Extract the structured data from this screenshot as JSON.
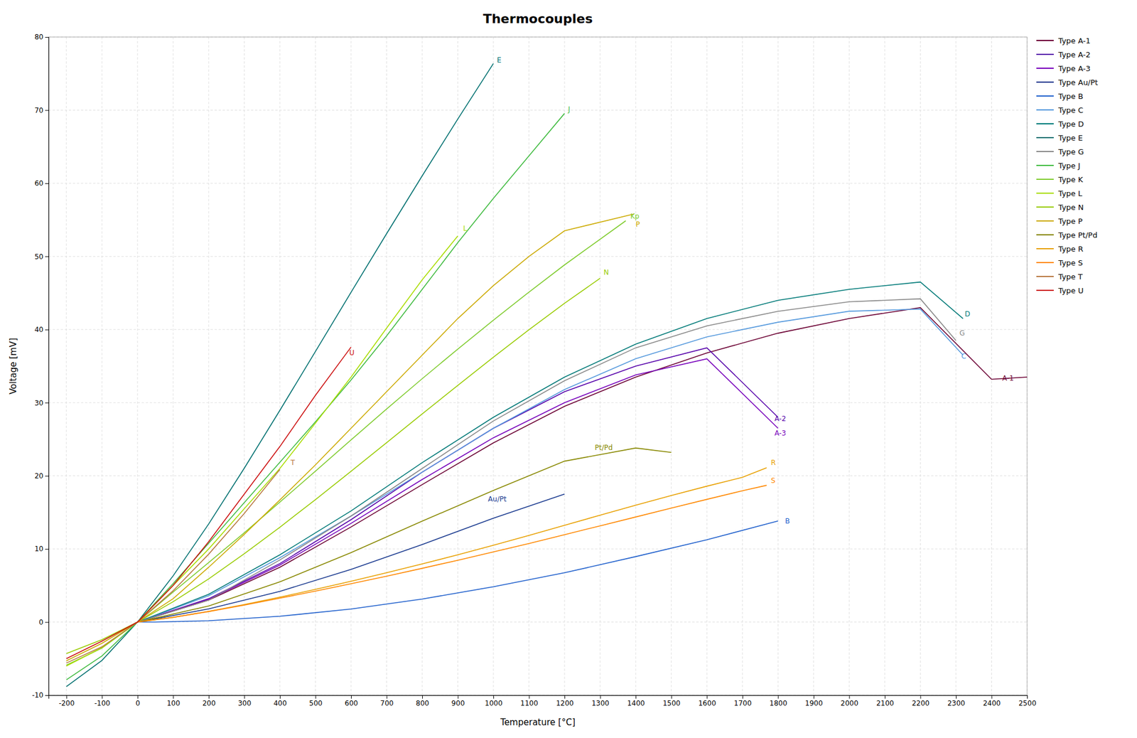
{
  "chart_data": {
    "type": "line",
    "title": "Thermocouples",
    "xlabel": "Temperature [°C]",
    "ylabel": "Voltage [mV]",
    "xlim": [
      -250,
      2500
    ],
    "ylim": [
      -10,
      80
    ],
    "xticks": [
      -200,
      -100,
      0,
      100,
      200,
      300,
      400,
      500,
      600,
      700,
      800,
      900,
      1000,
      1100,
      1200,
      1300,
      1400,
      1500,
      1600,
      1700,
      1800,
      1900,
      2000,
      2100,
      2200,
      2300,
      2400,
      2500
    ],
    "yticks": [
      -10,
      0,
      10,
      20,
      30,
      40,
      50,
      60,
      70,
      80
    ],
    "grid": true,
    "legend": "right",
    "series": [
      {
        "name": "Type A-1",
        "color": "#6B0033",
        "x": [
          0,
          200,
          400,
          600,
          800,
          1000,
          1200,
          1400,
          1600,
          1800,
          2000,
          2200,
          2400,
          2500
        ],
        "values": [
          0,
          3.0,
          7.5,
          13.0,
          18.8,
          24.5,
          29.5,
          33.5,
          36.8,
          39.5,
          41.5,
          43.0,
          33.2,
          33.5
        ]
      },
      {
        "name": "Type A-2",
        "color": "#5500AA",
        "x": [
          0,
          200,
          400,
          600,
          800,
          1000,
          1200,
          1400,
          1600,
          1800
        ],
        "values": [
          0,
          3.2,
          8.0,
          14.0,
          20.5,
          26.5,
          31.5,
          35.0,
          37.5,
          28.0
        ]
      },
      {
        "name": "Type A-3",
        "color": "#7700BB",
        "x": [
          0,
          200,
          400,
          600,
          800,
          1000,
          1200,
          1400,
          1600,
          1800
        ],
        "values": [
          0,
          3.1,
          7.8,
          13.5,
          19.5,
          25.2,
          30.0,
          33.8,
          36.0,
          26.5
        ]
      },
      {
        "name": "Type Au/Pt",
        "color": "#1A3A8F",
        "x": [
          0,
          200,
          400,
          600,
          800,
          1000,
          1200
        ],
        "values": [
          0,
          1.8,
          4.2,
          7.2,
          10.6,
          14.2,
          17.5
        ]
      },
      {
        "name": "Type B",
        "color": "#2060CC",
        "x": [
          0,
          50,
          200,
          400,
          600,
          800,
          1000,
          1200,
          1400,
          1600,
          1800
        ],
        "values": [
          0.0,
          0.0,
          0.18,
          0.79,
          1.79,
          3.15,
          4.83,
          6.74,
          8.95,
          11.26,
          13.82
        ]
      },
      {
        "name": "Type C",
        "color": "#5599DD",
        "x": [
          0,
          200,
          400,
          600,
          800,
          1000,
          1200,
          1400,
          1600,
          1800,
          2000,
          2200,
          2320
        ],
        "values": [
          0,
          3.6,
          8.8,
          14.5,
          20.5,
          26.5,
          31.8,
          36.0,
          39.0,
          41.0,
          42.5,
          42.8,
          36.5
        ]
      },
      {
        "name": "Type D",
        "color": "#007A78",
        "x": [
          0,
          200,
          400,
          600,
          800,
          1000,
          1200,
          1400,
          1600,
          1800,
          2000,
          2200,
          2320
        ],
        "values": [
          0,
          3.8,
          9.2,
          15.2,
          21.8,
          28.0,
          33.5,
          38.0,
          41.5,
          44.0,
          45.5,
          46.5,
          41.5
        ]
      },
      {
        "name": "Type E",
        "color": "#007070",
        "x": [
          -200,
          -100,
          0,
          100,
          200,
          300,
          400,
          500,
          600,
          700,
          800,
          900,
          1000
        ],
        "values": [
          -8.82,
          -5.24,
          0.0,
          6.32,
          13.42,
          21.04,
          28.95,
          37.0,
          45.09,
          53.11,
          61.02,
          68.78,
          76.37
        ]
      },
      {
        "name": "Type G",
        "color": "#888888",
        "x": [
          0,
          200,
          400,
          600,
          800,
          1000,
          1200,
          1400,
          1600,
          1800,
          2000,
          2200,
          2300
        ],
        "values": [
          0,
          3.0,
          8.5,
          14.5,
          21.0,
          27.5,
          33.0,
          37.5,
          40.5,
          42.5,
          43.8,
          44.2,
          38.5
        ]
      },
      {
        "name": "Type J",
        "color": "#40BB40",
        "x": [
          -200,
          -100,
          0,
          100,
          200,
          300,
          400,
          500,
          600,
          700,
          800,
          900,
          1000,
          1200
        ],
        "values": [
          -7.89,
          -4.63,
          0.0,
          5.27,
          10.78,
          16.33,
          21.85,
          27.39,
          33.1,
          39.13,
          45.49,
          51.88,
          57.94,
          69.55
        ]
      },
      {
        "name": "Type K",
        "color": "#80CC30",
        "x": [
          -200,
          -100,
          0,
          100,
          200,
          300,
          400,
          500,
          600,
          700,
          800,
          900,
          1000,
          1100,
          1200,
          1372
        ],
        "values": [
          -5.89,
          -3.55,
          0.0,
          4.1,
          8.14,
          12.21,
          16.4,
          20.64,
          24.91,
          29.14,
          33.28,
          37.33,
          41.27,
          45.12,
          48.84,
          54.87
        ]
      },
      {
        "name": "Type L",
        "color": "#AADD00",
        "x": [
          -200,
          -100,
          0,
          100,
          200,
          300,
          400,
          500,
          600,
          700,
          800,
          900
        ],
        "values": [
          -6.0,
          -3.5,
          0.0,
          5.0,
          10.0,
          15.5,
          21.0,
          27.2,
          33.5,
          40.2,
          46.8,
          52.8
        ]
      },
      {
        "name": "Type N",
        "color": "#99CC00",
        "x": [
          -200,
          -100,
          0,
          100,
          200,
          300,
          400,
          500,
          600,
          700,
          800,
          900,
          1000,
          1100,
          1200,
          1300
        ],
        "values": [
          -4.31,
          -2.41,
          0.0,
          2.78,
          5.91,
          9.34,
          12.97,
          16.75,
          20.61,
          24.53,
          28.46,
          32.37,
          36.22,
          39.97,
          43.59,
          47.01
        ]
      },
      {
        "name": "Type P",
        "color": "#CCAA00",
        "x": [
          -200,
          -100,
          0,
          100,
          200,
          300,
          400,
          500,
          600,
          700,
          800,
          900,
          1000,
          1100,
          1200,
          1395
        ],
        "values": [
          -5.3,
          -2.9,
          0.0,
          3.2,
          7.5,
          12.0,
          16.7,
          21.5,
          26.5,
          31.5,
          36.5,
          41.5,
          46.0,
          50.0,
          53.5,
          55.8
        ]
      },
      {
        "name": "Type Pt/Pd",
        "color": "#888800",
        "x": [
          0,
          200,
          400,
          600,
          800,
          1000,
          1200,
          1400,
          1500
        ],
        "values": [
          0,
          2.2,
          5.5,
          9.5,
          13.8,
          18.0,
          22.0,
          23.8,
          23.2
        ]
      },
      {
        "name": "Type R",
        "color": "#E8A000",
        "x": [
          0,
          100,
          200,
          300,
          400,
          500,
          600,
          700,
          800,
          900,
          1000,
          1100,
          1200,
          1300,
          1400,
          1500,
          1600,
          1700,
          1768
        ],
        "values": [
          0.0,
          0.64,
          1.47,
          2.4,
          3.41,
          4.47,
          5.58,
          6.74,
          7.95,
          9.2,
          10.5,
          11.85,
          13.23,
          14.62,
          15.98,
          17.31,
          18.58,
          19.79,
          21.1
        ]
      },
      {
        "name": "Type S",
        "color": "#FF8800",
        "x": [
          0,
          100,
          200,
          300,
          400,
          500,
          600,
          700,
          800,
          900,
          1000,
          1100,
          1200,
          1300,
          1400,
          1500,
          1600,
          1700,
          1768
        ],
        "values": [
          0.0,
          0.65,
          1.44,
          2.32,
          3.26,
          4.23,
          5.24,
          6.27,
          7.35,
          8.45,
          9.59,
          10.74,
          11.95,
          13.16,
          14.37,
          15.58,
          16.78,
          17.95,
          18.7
        ]
      },
      {
        "name": "Type T",
        "color": "#B87840",
        "x": [
          -200,
          -100,
          0,
          100,
          200,
          300,
          400
        ],
        "values": [
          -5.6,
          -3.38,
          0.0,
          4.28,
          9.29,
          14.86,
          20.87
        ]
      },
      {
        "name": "Type U",
        "color": "#CC1010",
        "x": [
          -200,
          -100,
          0,
          100,
          200,
          300,
          400,
          500,
          600
        ],
        "values": [
          -5.0,
          -2.6,
          0.0,
          5.0,
          11.0,
          17.5,
          24.0,
          31.0,
          37.6
        ]
      }
    ],
    "annotations": [
      {
        "text": "A-1",
        "x": 2430,
        "y": 33.0,
        "color": "#6B0033"
      },
      {
        "text": "A-2",
        "x": 1790,
        "y": 27.5,
        "color": "#5500AA"
      },
      {
        "text": "A-3",
        "x": 1790,
        "y": 25.5,
        "color": "#7700BB"
      },
      {
        "text": "Au/Pt",
        "x": 985,
        "y": 16.5,
        "color": "#1A3A8F"
      },
      {
        "text": "B",
        "x": 1820,
        "y": 13.5,
        "color": "#2060CC"
      },
      {
        "text": "C",
        "x": 2315,
        "y": 36.0,
        "color": "#5599DD"
      },
      {
        "text": "D",
        "x": 2325,
        "y": 41.8,
        "color": "#007A78"
      },
      {
        "text": "E",
        "x": 1010,
        "y": 76.5,
        "color": "#007070"
      },
      {
        "text": "G",
        "x": 2310,
        "y": 39.2,
        "color": "#888888"
      },
      {
        "text": "J",
        "x": 1210,
        "y": 69.8,
        "color": "#40BB40"
      },
      {
        "text": "Kp",
        "x": 1385,
        "y": 55.2,
        "color": "#80CC30"
      },
      {
        "text": "L",
        "x": 915,
        "y": 53.5,
        "color": "#AADD00"
      },
      {
        "text": "N",
        "x": 1310,
        "y": 47.5,
        "color": "#99CC00"
      },
      {
        "text": "P",
        "x": 1400,
        "y": 55.5,
        "color": "#CCAA00"
      },
      {
        "text": "Pt/Pd",
        "x": 1285,
        "y": 23.5,
        "color": "#888800"
      },
      {
        "text": "R",
        "x": 1780,
        "y": 21.5,
        "color": "#E8A000"
      },
      {
        "text": "S",
        "x": 1780,
        "y": 19.0,
        "color": "#FF8800"
      },
      {
        "text": "T",
        "x": 430,
        "y": 21.5,
        "color": "#B87840"
      },
      {
        "text": "U",
        "x": 595,
        "y": 36.5,
        "color": "#CC1010"
      }
    ]
  }
}
